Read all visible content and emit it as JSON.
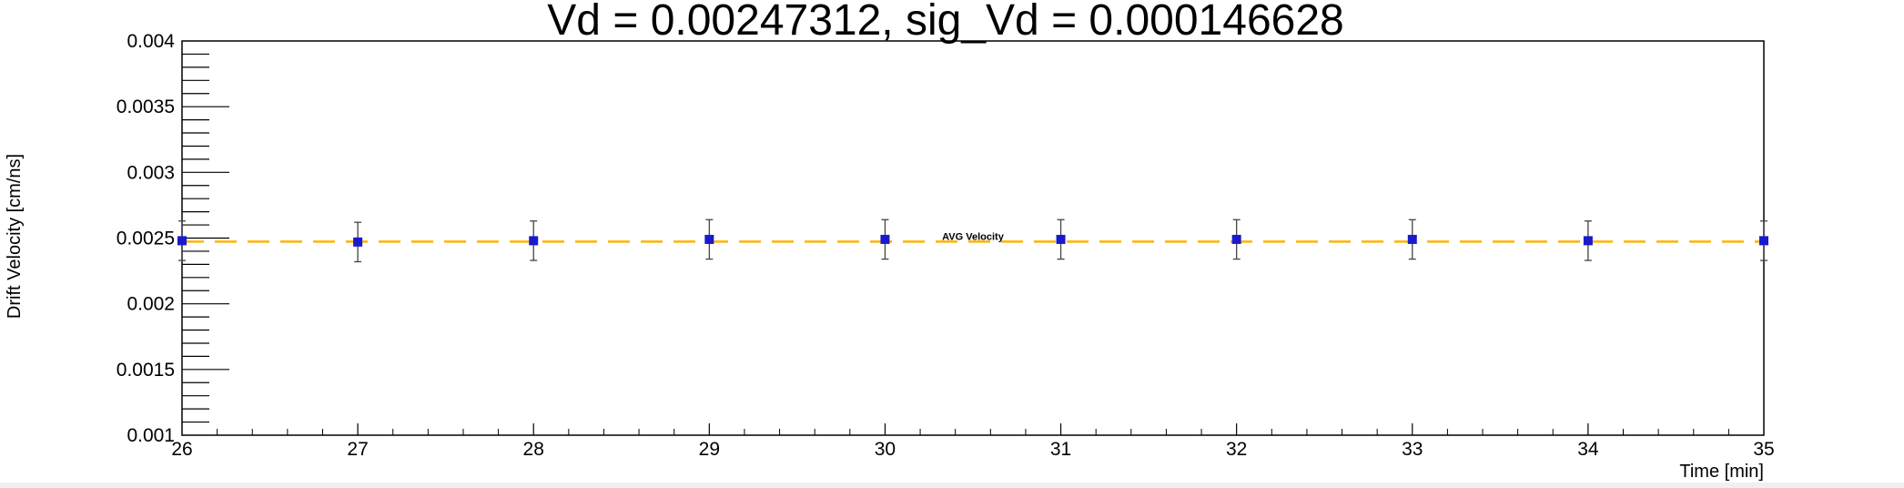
{
  "chart_data": {
    "type": "scatter",
    "title": "Vd = 0.00247312, sig_Vd = 0.000146628",
    "xlabel": "Time [min]",
    "ylabel": "Drift Velocity [cm/ns]",
    "xlim": [
      26,
      35
    ],
    "ylim": [
      0.001,
      0.004
    ],
    "x_ticks": [
      "26",
      "27",
      "28",
      "29",
      "30",
      "31",
      "32",
      "33",
      "34",
      "35"
    ],
    "y_ticks": [
      "0.001",
      "0.0015",
      "0.002",
      "0.0025",
      "0.003",
      "0.0035",
      "0.004"
    ],
    "grid": false,
    "series": [
      {
        "x": [
          26,
          27,
          28,
          29,
          30,
          31,
          32,
          33,
          34,
          35
        ],
        "y": [
          0.00248,
          0.00247,
          0.00248,
          0.00249,
          0.00249,
          0.00249,
          0.00249,
          0.00249,
          0.00248,
          0.00248
        ],
        "yerr": [
          0.00015,
          0.00015,
          0.00015,
          0.00015,
          0.00015,
          0.00015,
          0.00015,
          0.00015,
          0.00015,
          0.00015
        ],
        "color": "#1a1acc"
      }
    ],
    "reference_line": {
      "label": "AVG Velocity",
      "y": 0.00247312,
      "color": "#ffb300",
      "style": "dashed"
    }
  }
}
